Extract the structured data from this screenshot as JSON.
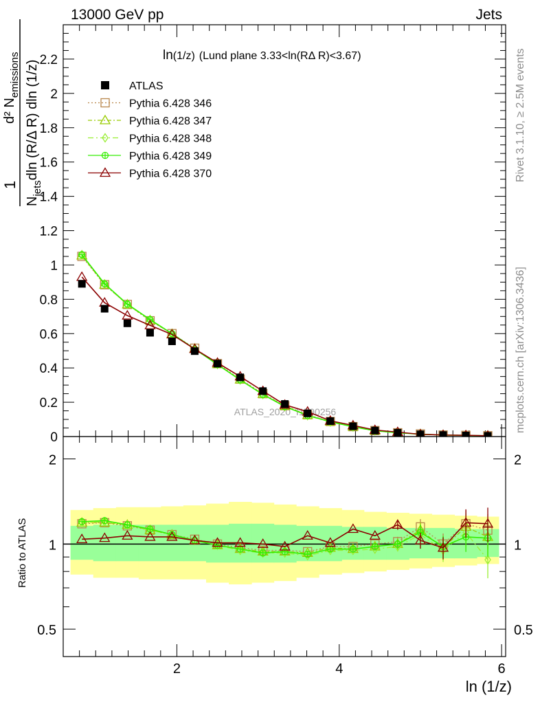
{
  "header": {
    "left": "13000 GeV pp",
    "right": "Jets"
  },
  "side_texts": {
    "rivet": "Rivet 3.1.10, ≥ 2.5M events",
    "mcplots": "mcplots.cern.ch [arXiv:1306.3436]"
  },
  "watermark": "ATLAS_2020_I1790256",
  "plot_title": {
    "main": "ln",
    "sub": "(1/z)",
    "rest": "(Lund plane 3.33<ln(RΔ R)<3.67)"
  },
  "ylabel_main": {
    "one": "1",
    "d2": "d² N",
    "d2sub": "emissions",
    "denom_n": "N",
    "denom_sub": "jets",
    "denom_rest": "dln (R/Δ R) dln (1/z)"
  },
  "ylabel_ratio": "Ratio to ATLAS",
  "xlabel": "ln (1/z)",
  "colors": {
    "atlas": "#000000",
    "p346": "#b8864b",
    "p347": "#99cc00",
    "p348": "#99ee33",
    "p349": "#33ee00",
    "p370": "#8b0000",
    "band_yellow": "#ffff99",
    "band_green": "#99ff99"
  },
  "chart_data": {
    "type": "scatter",
    "xlim": [
      0.6,
      6.05
    ],
    "main_ylim": [
      0,
      2.4
    ],
    "ratio_ylim": [
      0.4,
      2.4
    ],
    "ratio_log": true,
    "x_ticks": [
      2,
      4,
      6
    ],
    "main_yticks": [
      0,
      0.2,
      0.4,
      0.6,
      0.8,
      1,
      1.2,
      1.4,
      1.6,
      1.8,
      2,
      2.2
    ],
    "ratio_yticks": [
      0.5,
      1,
      2
    ],
    "x": [
      0.83,
      1.11,
      1.39,
      1.67,
      1.94,
      2.22,
      2.5,
      2.78,
      3.06,
      3.33,
      3.61,
      3.89,
      4.17,
      4.44,
      4.72,
      5.0,
      5.28,
      5.56,
      5.83
    ],
    "atlas": [
      0.89,
      0.745,
      0.66,
      0.605,
      0.555,
      0.498,
      0.425,
      0.345,
      0.265,
      0.19,
      0.135,
      0.09,
      0.06,
      0.035,
      0.022,
      0.013,
      0.009,
      0.006,
      0.004
    ],
    "band_yellow": [
      [
        0.78,
        1.32
      ],
      [
        0.76,
        1.34
      ],
      [
        0.76,
        1.35
      ],
      [
        0.75,
        1.35
      ],
      [
        0.75,
        1.36
      ],
      [
        0.75,
        1.37
      ],
      [
        0.73,
        1.39
      ],
      [
        0.72,
        1.41
      ],
      [
        0.73,
        1.4
      ],
      [
        0.74,
        1.38
      ],
      [
        0.76,
        1.36
      ],
      [
        0.78,
        1.34
      ],
      [
        0.79,
        1.32
      ],
      [
        0.8,
        1.3
      ],
      [
        0.81,
        1.29
      ],
      [
        0.82,
        1.28
      ],
      [
        0.83,
        1.27
      ],
      [
        0.84,
        1.26
      ],
      [
        0.85,
        1.25
      ]
    ],
    "band_green": [
      [
        0.88,
        1.16
      ],
      [
        0.87,
        1.17
      ],
      [
        0.87,
        1.17
      ],
      [
        0.87,
        1.17
      ],
      [
        0.87,
        1.17
      ],
      [
        0.87,
        1.17
      ],
      [
        0.86,
        1.17
      ],
      [
        0.86,
        1.18
      ],
      [
        0.86,
        1.18
      ],
      [
        0.86,
        1.17
      ],
      [
        0.87,
        1.16
      ],
      [
        0.87,
        1.16
      ],
      [
        0.88,
        1.15
      ],
      [
        0.88,
        1.15
      ],
      [
        0.88,
        1.14
      ],
      [
        0.89,
        1.14
      ],
      [
        0.89,
        1.14
      ],
      [
        0.89,
        1.13
      ],
      [
        0.9,
        1.13
      ]
    ],
    "series": [
      {
        "name": "Pythia 6.428 346",
        "marker": "square",
        "dash": "2,3",
        "values": [
          1.05,
          0.885,
          0.77,
          0.675,
          0.6,
          0.515,
          0.425,
          0.335,
          0.25,
          0.18,
          0.127,
          0.088,
          0.058,
          0.035,
          0.022,
          0.015,
          0.009,
          0.007,
          0.005
        ],
        "ratio": [
          1.18,
          1.19,
          1.16,
          1.12,
          1.08,
          1.04,
          1.0,
          0.97,
          0.95,
          0.95,
          0.94,
          0.98,
          0.98,
          1.0,
          1.02,
          1.15,
          1.0,
          1.18,
          1.12
        ]
      },
      {
        "name": "Pythia 6.428 347",
        "marker": "triangle",
        "dash": "6,3,2,3",
        "values": [
          1.055,
          0.885,
          0.77,
          0.678,
          0.598,
          0.512,
          0.422,
          0.332,
          0.248,
          0.178,
          0.125,
          0.087,
          0.057,
          0.034,
          0.022,
          0.014,
          0.009,
          0.007,
          0.005
        ],
        "ratio": [
          1.19,
          1.19,
          1.17,
          1.12,
          1.08,
          1.03,
          0.99,
          0.96,
          0.94,
          0.94,
          0.93,
          0.97,
          0.96,
          0.98,
          1.0,
          1.12,
          0.97,
          1.15,
          1.06
        ]
      },
      {
        "name": "Pythia 6.428 348",
        "marker": "diamond",
        "dash": "8,4,2,4",
        "values": [
          1.06,
          0.89,
          0.77,
          0.68,
          0.6,
          0.51,
          0.42,
          0.33,
          0.245,
          0.175,
          0.122,
          0.085,
          0.056,
          0.033,
          0.021,
          0.013,
          0.008,
          0.006,
          0.0036
        ],
        "ratio": [
          1.19,
          1.2,
          1.17,
          1.12,
          1.08,
          1.03,
          0.99,
          0.95,
          0.93,
          0.93,
          0.91,
          0.95,
          0.95,
          0.96,
          0.98,
          1.08,
          0.95,
          1.1,
          0.88
        ]
      },
      {
        "name": "Pythia 6.428 349",
        "marker": "circlecross",
        "dash": "",
        "values": [
          1.06,
          0.89,
          0.772,
          0.682,
          0.6,
          0.51,
          0.42,
          0.33,
          0.245,
          0.175,
          0.123,
          0.087,
          0.057,
          0.034,
          0.022,
          0.014,
          0.009,
          0.007,
          0.0043
        ],
        "ratio": [
          1.2,
          1.21,
          1.17,
          1.13,
          1.08,
          1.03,
          0.99,
          0.96,
          0.93,
          0.94,
          0.92,
          0.96,
          0.96,
          0.98,
          1.0,
          1.1,
          0.98,
          1.06,
          1.05
        ]
      },
      {
        "name": "Pythia 6.428 370",
        "marker": "triangle",
        "dash": "",
        "values": [
          0.93,
          0.78,
          0.705,
          0.648,
          0.595,
          0.51,
          0.43,
          0.35,
          0.265,
          0.185,
          0.145,
          0.092,
          0.065,
          0.038,
          0.026,
          0.013,
          0.009,
          0.0072,
          0.0048
        ],
        "ratio": [
          1.04,
          1.05,
          1.07,
          1.06,
          1.06,
          1.03,
          1.01,
          1.01,
          1.0,
          0.98,
          1.07,
          1.01,
          1.13,
          1.07,
          1.17,
          1.03,
          0.97,
          1.19,
          1.18
        ]
      }
    ]
  }
}
